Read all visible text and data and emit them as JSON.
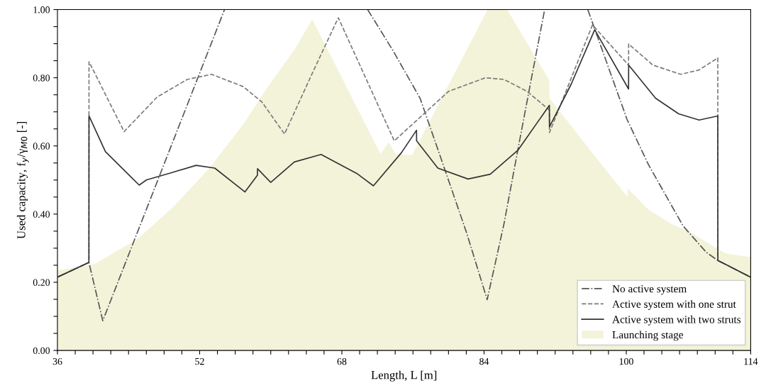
{
  "chart_data": {
    "type": "line",
    "xlabel": "Length, L [m]",
    "ylabel": "Used capacity, f$_{y}$/γ$_{M0}$ [-]",
    "xlim": [
      36,
      114
    ],
    "ylim": [
      0,
      1
    ],
    "xticks": [
      {
        "value": 36,
        "label": "36"
      },
      {
        "value": 38,
        "label": null
      },
      {
        "value": 40,
        "label": null
      },
      {
        "value": 42,
        "label": null
      },
      {
        "value": 44,
        "label": null
      },
      {
        "value": 46,
        "label": null
      },
      {
        "value": 48,
        "label": null
      },
      {
        "value": 50,
        "label": null
      },
      {
        "value": 52,
        "label": "52"
      },
      {
        "value": 54,
        "label": null
      },
      {
        "value": 56,
        "label": null
      },
      {
        "value": 58,
        "label": null
      },
      {
        "value": 60,
        "label": null
      },
      {
        "value": 62,
        "label": null
      },
      {
        "value": 64,
        "label": null
      },
      {
        "value": 66,
        "label": null
      },
      {
        "value": 68,
        "label": "68"
      },
      {
        "value": 70,
        "label": null
      },
      {
        "value": 72,
        "label": null
      },
      {
        "value": 74,
        "label": null
      },
      {
        "value": 76,
        "label": null
      },
      {
        "value": 78,
        "label": null
      },
      {
        "value": 80,
        "label": null
      },
      {
        "value": 82,
        "label": null
      },
      {
        "value": 84,
        "label": "84"
      },
      {
        "value": 86,
        "label": null
      },
      {
        "value": 88,
        "label": null
      },
      {
        "value": 90,
        "label": null
      },
      {
        "value": 92,
        "label": null
      },
      {
        "value": 94,
        "label": null
      },
      {
        "value": 96,
        "label": null
      },
      {
        "value": 98,
        "label": null
      },
      {
        "value": 100,
        "label": "100"
      },
      {
        "value": 102,
        "label": null
      },
      {
        "value": 104,
        "label": null
      },
      {
        "value": 106,
        "label": null
      },
      {
        "value": 108,
        "label": null
      },
      {
        "value": 110,
        "label": null
      },
      {
        "value": 112,
        "label": null
      },
      {
        "value": 114,
        "label": "114"
      }
    ],
    "yticks": [
      {
        "value": 0,
        "label": "0.00"
      },
      {
        "value": 0.05,
        "label": null
      },
      {
        "value": 0.1,
        "label": null
      },
      {
        "value": 0.15,
        "label": null
      },
      {
        "value": 0.2,
        "label": "0.20"
      },
      {
        "value": 0.25,
        "label": null
      },
      {
        "value": 0.3,
        "label": null
      },
      {
        "value": 0.35,
        "label": null
      },
      {
        "value": 0.4,
        "label": "0.40"
      },
      {
        "value": 0.45,
        "label": null
      },
      {
        "value": 0.5,
        "label": null
      },
      {
        "value": 0.55,
        "label": null
      },
      {
        "value": 0.6,
        "label": "0.60"
      },
      {
        "value": 0.65,
        "label": null
      },
      {
        "value": 0.7,
        "label": null
      },
      {
        "value": 0.75,
        "label": null
      },
      {
        "value": 0.8,
        "label": "0.80"
      },
      {
        "value": 0.85,
        "label": null
      },
      {
        "value": 0.9,
        "label": null
      },
      {
        "value": 0.95,
        "label": null
      },
      {
        "value": 1.0,
        "label": "1.00"
      }
    ],
    "grid": false,
    "legend": "bottom right",
    "series": [
      {
        "name": "No active system",
        "line_style": "dashdot",
        "color": "#555555",
        "x": [
          36,
          39.54,
          41.1,
          54.8,
          54.81,
          70.9,
          73.7,
          76.8,
          79.4,
          82.05,
          84.35,
          86.24,
          87.8,
          89.38,
          90.82,
          90.83,
          95.67,
          100.1,
          102.5,
          106.4,
          109.0,
          110.3,
          114
        ],
        "values": [
          0.215,
          0.258,
          0.087,
          1.0,
          null,
          1.0,
          0.882,
          0.74,
          0.545,
          0.344,
          0.149,
          0.371,
          0.588,
          0.805,
          1.0,
          null,
          1.0,
          0.677,
          0.545,
          0.365,
          0.288,
          0.264,
          0.215
        ]
      },
      {
        "name": "Active system with one strut",
        "line_style": "dashed",
        "color": "#7a7a7a",
        "x": [
          36,
          39.54,
          39.55,
          43.5,
          47.2,
          50.6,
          53.35,
          56.9,
          59.0,
          61.55,
          64.6,
          67.6,
          73.9,
          80.0,
          84.15,
          86.24,
          88.85,
          91.35,
          91.36,
          96.2,
          100.26,
          100.27,
          103.0,
          106.15,
          108.2,
          110.3,
          110.31,
          114
        ],
        "values": [
          0.215,
          0.258,
          0.847,
          0.642,
          0.743,
          0.795,
          0.81,
          0.774,
          0.729,
          0.635,
          0.809,
          0.976,
          0.615,
          0.76,
          0.8,
          0.795,
          0.76,
          0.705,
          0.639,
          0.955,
          0.837,
          0.899,
          0.837,
          0.81,
          0.823,
          0.858,
          0.264,
          0.215
        ]
      },
      {
        "name": "Active system with two struts",
        "line_style": "solid",
        "color": "#333333",
        "x": [
          36,
          39.54,
          39.55,
          41.4,
          45.2,
          46.0,
          48.9,
          51.6,
          53.7,
          57.1,
          58.5,
          58.51,
          60.0,
          62.65,
          65.66,
          69.7,
          71.55,
          74.7,
          76.4,
          76.41,
          78.8,
          82.2,
          84.7,
          87.8,
          91.35,
          91.36,
          93.8,
          96.45,
          100.26,
          100.27,
          103.3,
          105.9,
          108.2,
          110.3,
          110.31,
          114
        ],
        "values": [
          0.215,
          0.258,
          0.688,
          0.583,
          0.485,
          0.5,
          0.522,
          0.543,
          0.535,
          0.465,
          0.514,
          0.533,
          0.493,
          0.553,
          0.575,
          0.519,
          0.483,
          0.58,
          0.646,
          0.615,
          0.535,
          0.503,
          0.517,
          0.587,
          0.719,
          0.656,
          0.781,
          0.941,
          0.767,
          0.837,
          0.74,
          0.694,
          0.676,
          0.688,
          0.264,
          0.215
        ]
      },
      {
        "name": "Launching stage",
        "type": "area",
        "color": "#f3f3d9",
        "x": [
          36,
          40.25,
          42.2,
          44.96,
          49.0,
          52.96,
          56.9,
          59.5,
          62.65,
          64.67,
          72.35,
          73.26,
          74.05,
          75.9,
          84.4,
          86.6,
          91.35,
          91.36,
          94.1,
          97.24,
          100.13,
          100.14,
          102.5,
          105.1,
          107.2,
          111.13,
          114
        ],
        "values": [
          0.235,
          0.254,
          0.285,
          0.326,
          0.42,
          0.531,
          0.663,
          0.767,
          0.882,
          0.972,
          0.576,
          0.611,
          0.576,
          0.573,
          1.0,
          1.0,
          0.792,
          0.74,
          0.649,
          0.545,
          0.451,
          0.476,
          0.413,
          0.371,
          0.347,
          0.285,
          0.274
        ]
      }
    ]
  }
}
